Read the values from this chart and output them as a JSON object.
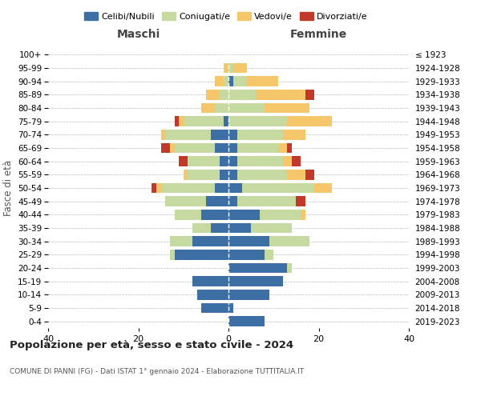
{
  "age_groups": [
    "0-4",
    "5-9",
    "10-14",
    "15-19",
    "20-24",
    "25-29",
    "30-34",
    "35-39",
    "40-44",
    "45-49",
    "50-54",
    "55-59",
    "60-64",
    "65-69",
    "70-74",
    "75-79",
    "80-84",
    "85-89",
    "90-94",
    "95-99",
    "100+"
  ],
  "birth_years": [
    "2019-2023",
    "2014-2018",
    "2009-2013",
    "2004-2008",
    "1999-2003",
    "1994-1998",
    "1989-1993",
    "1984-1988",
    "1979-1983",
    "1974-1978",
    "1969-1973",
    "1964-1968",
    "1959-1963",
    "1954-1958",
    "1949-1953",
    "1944-1948",
    "1939-1943",
    "1934-1938",
    "1929-1933",
    "1924-1928",
    "≤ 1923"
  ],
  "colors": {
    "celibi": "#3d6fa5",
    "coniugati": "#c5d9a0",
    "vedovi": "#f5c76a",
    "divorziati": "#c0392b"
  },
  "maschi": {
    "celibi": [
      0,
      6,
      7,
      8,
      0,
      12,
      8,
      4,
      6,
      5,
      3,
      2,
      2,
      3,
      4,
      1,
      0,
      0,
      0,
      0,
      0
    ],
    "coniugati": [
      0,
      0,
      0,
      0,
      0,
      1,
      5,
      4,
      6,
      9,
      12,
      7,
      7,
      9,
      10,
      9,
      3,
      2,
      1,
      0,
      0
    ],
    "vedovi": [
      0,
      0,
      0,
      0,
      0,
      0,
      0,
      0,
      0,
      0,
      1,
      1,
      0,
      1,
      1,
      1,
      3,
      3,
      2,
      1,
      0
    ],
    "divorziati": [
      0,
      0,
      0,
      0,
      0,
      0,
      0,
      0,
      0,
      0,
      1,
      0,
      2,
      2,
      0,
      1,
      0,
      0,
      0,
      0,
      0
    ]
  },
  "femmine": {
    "celibi": [
      8,
      1,
      9,
      12,
      13,
      8,
      9,
      5,
      7,
      2,
      3,
      2,
      2,
      2,
      2,
      0,
      0,
      0,
      1,
      0,
      0
    ],
    "coniugati": [
      0,
      0,
      0,
      0,
      1,
      2,
      9,
      9,
      9,
      13,
      16,
      11,
      10,
      9,
      10,
      13,
      8,
      6,
      3,
      1,
      0
    ],
    "vedovi": [
      0,
      0,
      0,
      0,
      0,
      0,
      0,
      0,
      1,
      0,
      4,
      4,
      2,
      2,
      5,
      10,
      10,
      11,
      7,
      3,
      0
    ],
    "divorziati": [
      0,
      0,
      0,
      0,
      0,
      0,
      0,
      0,
      0,
      2,
      0,
      2,
      2,
      1,
      0,
      0,
      0,
      2,
      0,
      0,
      0
    ]
  },
  "xlim": 40,
  "title": "Popolazione per età, sesso e stato civile - 2024",
  "subtitle": "COMUNE DI PANNI (FG) - Dati ISTAT 1° gennaio 2024 - Elaborazione TUTTITALIA.IT",
  "ylabel_left": "Fasce di età",
  "xlabel_left": "Maschi",
  "xlabel_right": "Femmine",
  "background_color": "#ffffff",
  "grid_color": "#bbbbbb"
}
